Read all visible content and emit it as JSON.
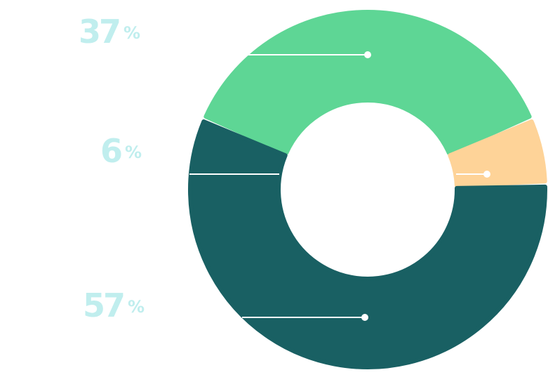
{
  "chart_data": {
    "type": "donut",
    "values": [
      37,
      6,
      57
    ],
    "value_labels": [
      "37%",
      "6%",
      "57%"
    ],
    "colors": [
      "#5ed695",
      "#fed398",
      "#196063"
    ],
    "label_color": "#c0eeee"
  }
}
